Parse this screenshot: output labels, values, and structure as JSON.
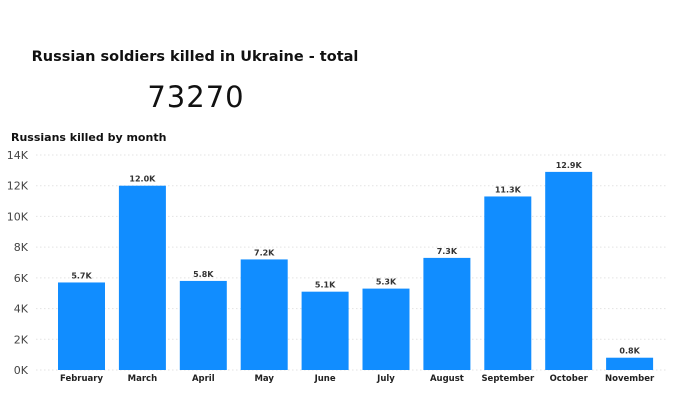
{
  "kpi": {
    "title": "Russian soldiers killed in Ukraine - total",
    "value": "73270"
  },
  "chart_data": {
    "type": "bar",
    "title": "Russians killed by month",
    "xlabel": "",
    "ylabel": "",
    "categories": [
      "February",
      "March",
      "April",
      "May",
      "June",
      "July",
      "August",
      "September",
      "October",
      "November"
    ],
    "values": [
      5700,
      12000,
      5800,
      7200,
      5100,
      5300,
      7300,
      11300,
      12900,
      800
    ],
    "data_labels": [
      "5.7K",
      "12.0K",
      "5.8K",
      "7.2K",
      "5.1K",
      "5.3K",
      "7.3K",
      "11.3K",
      "12.9K",
      "0.8K"
    ],
    "ylim": [
      0,
      14000
    ],
    "yticks": [
      0,
      2000,
      4000,
      6000,
      8000,
      10000,
      12000,
      14000
    ],
    "ytick_labels": [
      "0K",
      "2K",
      "4K",
      "6K",
      "8K",
      "10K",
      "12K",
      "14K"
    ],
    "grid": true,
    "bar_color": "#118DFF",
    "grid_color": "#e3e3e3"
  }
}
